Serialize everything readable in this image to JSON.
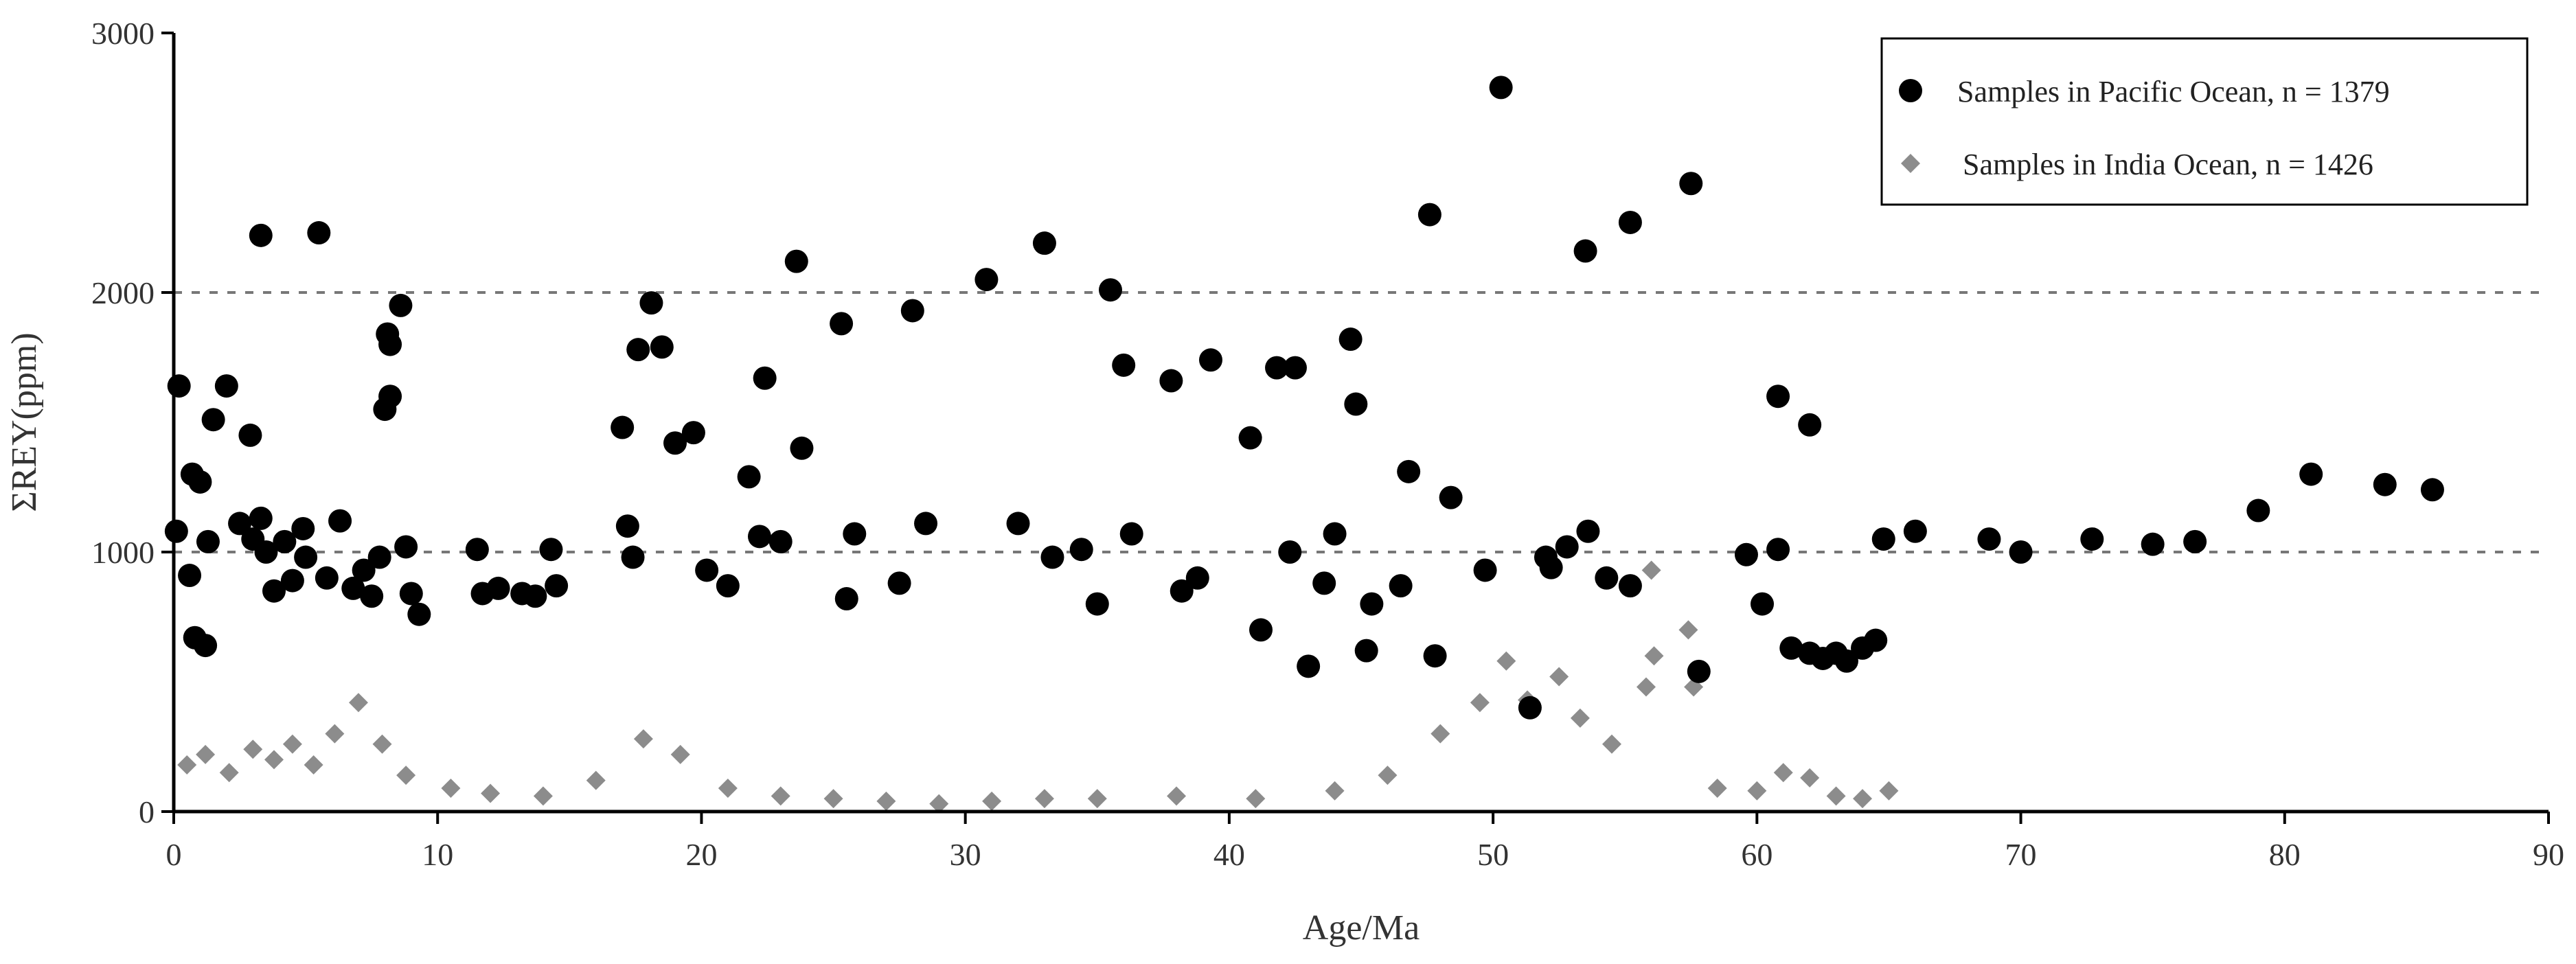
{
  "chart_data": {
    "type": "scatter",
    "title": "",
    "xlabel": "Age/Ma",
    "ylabel": "ΣREY(ppm)",
    "xlim": [
      0,
      90
    ],
    "ylim": [
      0,
      3000
    ],
    "x_ticks": [
      "0",
      "10",
      "20",
      "30",
      "40",
      "50",
      "60",
      "70",
      "80",
      "90"
    ],
    "y_ticks": [
      "0",
      "1000",
      "2000",
      "3000"
    ],
    "reference_lines_y": [
      1000,
      2000
    ],
    "grid": false,
    "legend_position": "top-right",
    "series": [
      {
        "name": "Samples in Pacific Ocean, n = 1379",
        "marker": "circle",
        "color": "#000000",
        "points": [
          [
            0.1,
            1080
          ],
          [
            0.2,
            1640
          ],
          [
            0.6,
            910
          ],
          [
            0.7,
            1300
          ],
          [
            0.8,
            670
          ],
          [
            1.0,
            1270
          ],
          [
            1.2,
            640
          ],
          [
            1.3,
            1040
          ],
          [
            1.5,
            1510
          ],
          [
            2.0,
            1640
          ],
          [
            2.5,
            1110
          ],
          [
            2.9,
            1450
          ],
          [
            3.0,
            1050
          ],
          [
            3.3,
            2220
          ],
          [
            3.3,
            1130
          ],
          [
            3.5,
            1000
          ],
          [
            3.8,
            850
          ],
          [
            4.2,
            1040
          ],
          [
            4.5,
            890
          ],
          [
            4.9,
            1090
          ],
          [
            5.0,
            980
          ],
          [
            5.5,
            2230
          ],
          [
            5.8,
            900
          ],
          [
            6.3,
            1120
          ],
          [
            6.8,
            860
          ],
          [
            7.2,
            930
          ],
          [
            7.5,
            830
          ],
          [
            7.8,
            980
          ],
          [
            8.0,
            1550
          ],
          [
            8.1,
            1840
          ],
          [
            8.2,
            1800
          ],
          [
            8.2,
            1600
          ],
          [
            8.6,
            1950
          ],
          [
            8.8,
            1020
          ],
          [
            9.3,
            760
          ],
          [
            9.0,
            840
          ],
          [
            11.5,
            1010
          ],
          [
            11.7,
            840
          ],
          [
            12.3,
            860
          ],
          [
            13.2,
            840
          ],
          [
            13.7,
            830
          ],
          [
            14.3,
            1010
          ],
          [
            14.5,
            870
          ],
          [
            17.0,
            1480
          ],
          [
            17.2,
            1100
          ],
          [
            17.4,
            980
          ],
          [
            17.6,
            1780
          ],
          [
            18.1,
            1960
          ],
          [
            18.5,
            1790
          ],
          [
            19.0,
            1420
          ],
          [
            19.7,
            1460
          ],
          [
            20.2,
            930
          ],
          [
            21.0,
            870
          ],
          [
            21.8,
            1290
          ],
          [
            22.2,
            1060
          ],
          [
            22.4,
            1670
          ],
          [
            23.0,
            1040
          ],
          [
            23.6,
            2120
          ],
          [
            23.8,
            1400
          ],
          [
            25.3,
            1880
          ],
          [
            25.5,
            820
          ],
          [
            25.8,
            1070
          ],
          [
            27.5,
            880
          ],
          [
            28.0,
            1930
          ],
          [
            28.5,
            1110
          ],
          [
            30.8,
            2050
          ],
          [
            32.0,
            1110
          ],
          [
            33.0,
            2190
          ],
          [
            33.3,
            980
          ],
          [
            34.4,
            1010
          ],
          [
            35.0,
            800
          ],
          [
            35.5,
            2010
          ],
          [
            36.0,
            1720
          ],
          [
            36.3,
            1070
          ],
          [
            37.8,
            1660
          ],
          [
            38.2,
            850
          ],
          [
            38.8,
            900
          ],
          [
            39.3,
            1740
          ],
          [
            40.8,
            1440
          ],
          [
            41.2,
            700
          ],
          [
            41.8,
            1710
          ],
          [
            42.3,
            1000
          ],
          [
            42.5,
            1710
          ],
          [
            43.0,
            560
          ],
          [
            43.6,
            880
          ],
          [
            44.0,
            1070
          ],
          [
            44.6,
            1820
          ],
          [
            44.8,
            1570
          ],
          [
            45.2,
            620
          ],
          [
            45.4,
            800
          ],
          [
            46.5,
            870
          ],
          [
            46.8,
            1310
          ],
          [
            47.6,
            2300
          ],
          [
            47.8,
            600
          ],
          [
            48.4,
            1210
          ],
          [
            49.7,
            930
          ],
          [
            50.3,
            2790
          ],
          [
            51.4,
            400
          ],
          [
            52.0,
            980
          ],
          [
            52.2,
            940
          ],
          [
            52.8,
            1020
          ],
          [
            53.5,
            2160
          ],
          [
            53.6,
            1080
          ],
          [
            54.3,
            900
          ],
          [
            55.2,
            2270
          ],
          [
            55.2,
            870
          ],
          [
            57.5,
            2420
          ],
          [
            57.8,
            540
          ],
          [
            59.6,
            990
          ],
          [
            60.2,
            800
          ],
          [
            60.8,
            1600
          ],
          [
            60.8,
            1010
          ],
          [
            61.3,
            630
          ],
          [
            62.0,
            1490
          ],
          [
            62.0,
            610
          ],
          [
            62.5,
            590
          ],
          [
            63.0,
            610
          ],
          [
            63.4,
            580
          ],
          [
            64.0,
            630
          ],
          [
            64.5,
            660
          ],
          [
            64.8,
            1050
          ],
          [
            66.0,
            1080
          ],
          [
            68.8,
            1050
          ],
          [
            70.0,
            1000
          ],
          [
            72.7,
            1050
          ],
          [
            75.0,
            1030
          ],
          [
            76.6,
            1040
          ],
          [
            79.0,
            1160
          ],
          [
            81.0,
            1300
          ],
          [
            83.8,
            1260
          ],
          [
            85.6,
            1240
          ]
        ]
      },
      {
        "name": "Samples in India Ocean, n = 1426",
        "marker": "diamond",
        "color": "#8c8c8c",
        "points": [
          [
            0.5,
            180
          ],
          [
            1.2,
            220
          ],
          [
            2.1,
            150
          ],
          [
            3.0,
            240
          ],
          [
            3.8,
            200
          ],
          [
            4.5,
            260
          ],
          [
            5.3,
            180
          ],
          [
            6.1,
            300
          ],
          [
            7.0,
            420
          ],
          [
            7.9,
            260
          ],
          [
            8.8,
            140
          ],
          [
            10.5,
            90
          ],
          [
            12.0,
            70
          ],
          [
            14.0,
            60
          ],
          [
            16.0,
            120
          ],
          [
            17.8,
            280
          ],
          [
            19.2,
            220
          ],
          [
            21.0,
            90
          ],
          [
            23.0,
            60
          ],
          [
            25.0,
            50
          ],
          [
            27.0,
            40
          ],
          [
            29.0,
            30
          ],
          [
            31.0,
            40
          ],
          [
            33.0,
            50
          ],
          [
            35.0,
            50
          ],
          [
            38.0,
            60
          ],
          [
            41.0,
            50
          ],
          [
            44.0,
            80
          ],
          [
            46.0,
            140
          ],
          [
            48.0,
            300
          ],
          [
            49.5,
            420
          ],
          [
            50.5,
            580
          ],
          [
            51.3,
            430
          ],
          [
            52.5,
            520
          ],
          [
            53.3,
            360
          ],
          [
            54.5,
            260
          ],
          [
            55.8,
            480
          ],
          [
            56.1,
            600
          ],
          [
            56.0,
            930
          ],
          [
            57.4,
            700
          ],
          [
            57.6,
            480
          ],
          [
            58.5,
            90
          ],
          [
            60.0,
            80
          ],
          [
            61.0,
            150
          ],
          [
            62.0,
            130
          ],
          [
            63.0,
            60
          ],
          [
            64.0,
            50
          ],
          [
            65.0,
            80
          ]
        ]
      }
    ]
  }
}
